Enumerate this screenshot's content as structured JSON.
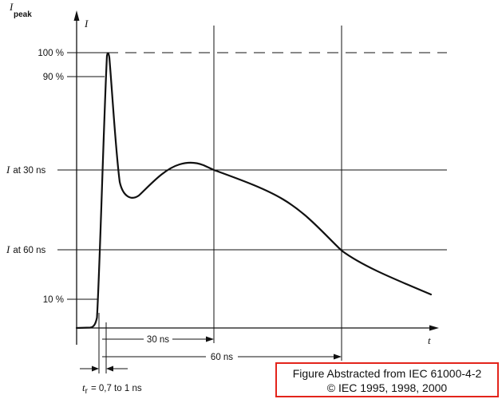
{
  "figure": {
    "y_axis": {
      "symbol": "I",
      "subscript": "peak",
      "arrow_symbol": "I"
    },
    "x_axis": {
      "symbol": "t"
    },
    "levels": {
      "peak_100": "100 %",
      "pct_90": "90 %",
      "at_30ns": {
        "symbol": "I",
        "text": "at 30 ns"
      },
      "at_60ns": {
        "symbol": "I",
        "text": "at 60 ns"
      },
      "pct_10": "10 %"
    },
    "intervals": {
      "t30": "30 ns",
      "t60": "60 ns"
    },
    "rise_time": {
      "symbol": "t",
      "subscript": "r",
      "text": "= 0,7 to 1 ns"
    }
  },
  "credit": {
    "line1": "Figure Abstracted from IEC 61000-4-2",
    "line2": "© IEC 1995, 1998, 2000"
  },
  "colors": {
    "ink": "#111111",
    "background": "#ffffff",
    "credit_border": "#e3241b"
  }
}
